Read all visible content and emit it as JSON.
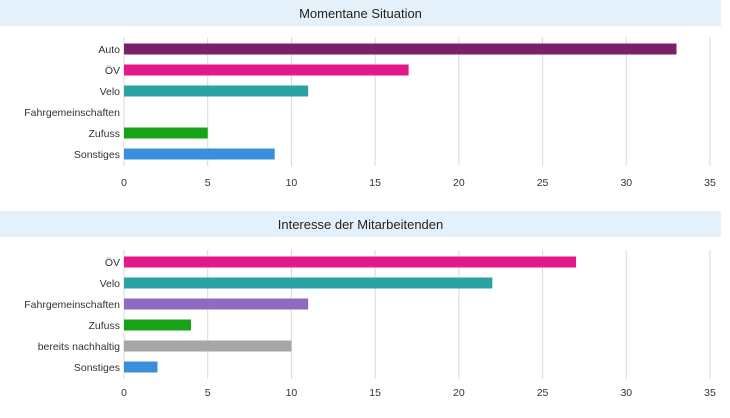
{
  "chart_data": [
    {
      "type": "bar",
      "orientation": "horizontal",
      "title": "Momentane Situation",
      "categories": [
        "Auto",
        "ÖV",
        "Velo",
        "Fahrgemeinschaften",
        "Zufuss",
        "Sonstiges"
      ],
      "values": [
        33,
        17,
        11,
        0,
        5,
        9
      ],
      "colors": [
        "#7b1f6a",
        "#e6168c",
        "#2ba3a3",
        "#8c6bc0",
        "#17a317",
        "#3a8fdc"
      ],
      "xlim": [
        0,
        35
      ],
      "xticks": [
        0,
        5,
        10,
        15,
        20,
        25,
        30,
        35
      ],
      "grid": true,
      "legend": "none"
    },
    {
      "type": "bar",
      "orientation": "horizontal",
      "title": "Interesse der Mitarbeitenden",
      "categories": [
        "ÖV",
        "Velo",
        "Fahrgemeinschaften",
        "Zufuss",
        "bereits nachhaltig",
        "Sonstiges"
      ],
      "values": [
        27,
        22,
        11,
        4,
        10,
        2
      ],
      "colors": [
        "#e6168c",
        "#2ba3a3",
        "#8c6bc0",
        "#17a317",
        "#a6a6a6",
        "#3a8fdc"
      ],
      "xlim": [
        0,
        35
      ],
      "xticks": [
        0,
        5,
        10,
        15,
        20,
        25,
        30,
        35
      ],
      "grid": true,
      "legend": "none"
    }
  ]
}
